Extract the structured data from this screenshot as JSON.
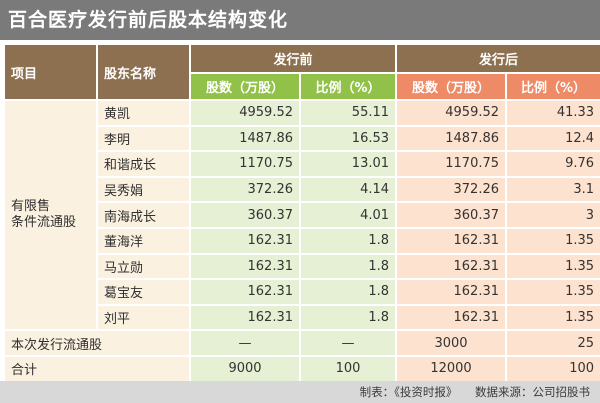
{
  "title": "百合医疗发行前后股本结构变化",
  "headers": {
    "item": "项目",
    "holder": "股东名称",
    "before": "发行前",
    "after": "发行后",
    "shares_before": "股数（万股）",
    "ratio_before": "比例（%）",
    "shares_after": "股数（万股）",
    "ratio_after": "比例（%）"
  },
  "group_label_line1": "有限售",
  "group_label_line2": "条件流通股",
  "rows": [
    {
      "name": "黄凯",
      "shares_before": "4959.52",
      "ratio_before": "55.11",
      "shares_after": "4959.52",
      "ratio_after": "41.33"
    },
    {
      "name": "李明",
      "shares_before": "1487.86",
      "ratio_before": "16.53",
      "shares_after": "1487.86",
      "ratio_after": "12.4"
    },
    {
      "name": "和谐成长",
      "shares_before": "1170.75",
      "ratio_before": "13.01",
      "shares_after": "1170.75",
      "ratio_after": "9.76"
    },
    {
      "name": "吴秀娟",
      "shares_before": "372.26",
      "ratio_before": "4.14",
      "shares_after": "372.26",
      "ratio_after": "3.1"
    },
    {
      "name": "南海成长",
      "shares_before": "360.37",
      "ratio_before": "4.01",
      "shares_after": "360.37",
      "ratio_after": "3"
    },
    {
      "name": "董海洋",
      "shares_before": "162.31",
      "ratio_before": "1.8",
      "shares_after": "162.31",
      "ratio_after": "1.35"
    },
    {
      "name": "马立勋",
      "shares_before": "162.31",
      "ratio_before": "1.8",
      "shares_after": "162.31",
      "ratio_after": "1.35"
    },
    {
      "name": "葛宝友",
      "shares_before": "162.31",
      "ratio_before": "1.8",
      "shares_after": "162.31",
      "ratio_after": "1.35"
    },
    {
      "name": "刘平",
      "shares_before": "162.31",
      "ratio_before": "1.8",
      "shares_after": "162.31",
      "ratio_after": "1.35"
    }
  ],
  "issue_row": {
    "label": "本次发行流通股",
    "shares_before": "—",
    "ratio_before": "—",
    "shares_after": "3000",
    "ratio_after": "25"
  },
  "total_row": {
    "label": "合计",
    "shares_before": "9000",
    "ratio_before": "100",
    "shares_after": "12000",
    "ratio_after": "100"
  },
  "footer": {
    "maker": "制表：《投资时报》",
    "source": "数据来源：公司招股书"
  }
}
